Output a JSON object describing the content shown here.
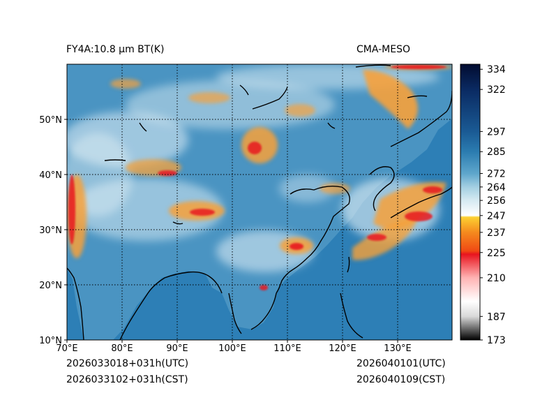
{
  "header": {
    "title_left": "FY4A:10.8 µm BT(K)",
    "title_right": "CMA-MESO"
  },
  "footer": {
    "init_utc": "2026033018+031h(UTC)",
    "init_cst": "2026033102+031h(CST)",
    "valid_utc": "2026040101(UTC)",
    "valid_cst": "2026040109(CST)"
  },
  "map": {
    "lon_labels": [
      "70°E",
      "80°E",
      "90°E",
      "100°E",
      "110°E",
      "120°E",
      "130°E"
    ],
    "lat_labels": [
      "10°N",
      "20°N",
      "30°N",
      "40°N",
      "50°N"
    ],
    "lon_range": [
      70,
      140
    ],
    "lat_range": [
      10,
      60
    ],
    "gridlines": "dotted"
  },
  "colorbar": {
    "ticks": [
      "334",
      "322",
      "297",
      "285",
      "272",
      "264",
      "256",
      "247",
      "237",
      "225",
      "210",
      "187",
      "173"
    ],
    "tick_values": [
      334,
      322,
      297,
      285,
      272,
      264,
      256,
      247,
      237,
      225,
      210,
      187,
      173
    ],
    "range": [
      173,
      337
    ],
    "colors": {
      "c173": "#000000",
      "c187": "#d9d9d9",
      "c196": "#ffffff",
      "c210": "#ffb3b3",
      "c224": "#e8141e",
      "c226": "#f04a14",
      "c237": "#f58a1e",
      "c246": "#fcd032",
      "c247": "#ffffff",
      "c256": "#d6eaf2",
      "c264": "#a3cfe2",
      "c272": "#5ea6cc",
      "c285": "#2b7cb0",
      "c297": "#1a5a94",
      "c322": "#0a2a62",
      "c337": "#020c30"
    }
  },
  "palette": {
    "ocean": "#2d7fb6",
    "land": "#4a94c2",
    "cloud_light": "#e4f1f7",
    "cloud_warm": "#f7a13a",
    "cloud_hot": "#e8141e",
    "coast": "#000000"
  }
}
